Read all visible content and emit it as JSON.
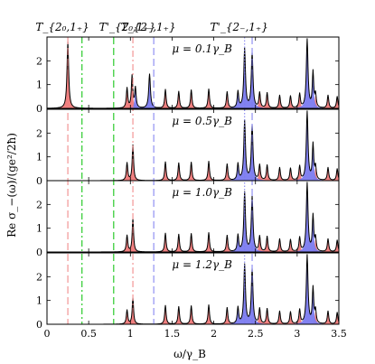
{
  "chart_data": {
    "type": "area",
    "ylabel": "Re σ_−(ω)/(ge²/2ħ)",
    "xlabel": "ω/γ_B",
    "xlim": [
      0,
      3.5
    ],
    "ylim": [
      0,
      3
    ],
    "x_ticks": [
      "0",
      "0.5",
      "1",
      "1.5",
      "2",
      "2.5",
      "3",
      "3.5"
    ],
    "y_ticks": [
      "0",
      "1",
      "2"
    ],
    "top_labels": [
      "T_{2₀,1₊}",
      "T'_{2₀,1₊}",
      "T_{2₋,1₊}",
      "T'_{2₋,1₊}"
    ],
    "colors": {
      "red": "#f08080",
      "blue": "#7b7bef",
      "curve": "#000000",
      "green": "#00c000"
    },
    "panels": [
      {
        "mu_label": "μ = 0.1γ_B",
        "red_peaks": [
          [
            0.25,
            2.8,
            0.012
          ],
          [
            0.96,
            0.85,
            0.01
          ],
          [
            1.02,
            1.35,
            0.01
          ],
          [
            1.42,
            0.8,
            0.01
          ],
          [
            1.58,
            0.72,
            0.01
          ],
          [
            1.73,
            0.78,
            0.01
          ],
          [
            1.94,
            0.82,
            0.01
          ],
          [
            2.16,
            0.7,
            0.01
          ],
          [
            2.55,
            0.65,
            0.01
          ],
          [
            2.64,
            0.65,
            0.01
          ],
          [
            2.79,
            0.55,
            0.01
          ],
          [
            2.92,
            0.52,
            0.01
          ],
          [
            3.03,
            0.6,
            0.01
          ],
          [
            3.22,
            0.55,
            0.01
          ],
          [
            3.37,
            0.55,
            0.01
          ],
          [
            3.48,
            0.5,
            0.01
          ]
        ],
        "blue_peaks": [
          [
            1.06,
            0.85,
            0.01
          ],
          [
            1.23,
            1.45,
            0.012
          ],
          [
            2.29,
            0.7,
            0.01
          ],
          [
            2.37,
            2.5,
            0.012
          ],
          [
            2.46,
            2.3,
            0.012
          ],
          [
            3.12,
            2.9,
            0.012
          ],
          [
            3.19,
            1.5,
            0.01
          ]
        ]
      },
      {
        "mu_label": "μ = 0.5γ_B",
        "red_peaks": [
          [
            0.96,
            0.75,
            0.01
          ],
          [
            1.03,
            1.5,
            0.01
          ],
          [
            1.42,
            0.8,
            0.01
          ],
          [
            1.58,
            0.75,
            0.01
          ],
          [
            1.73,
            0.78,
            0.01
          ],
          [
            1.94,
            0.82,
            0.01
          ],
          [
            2.16,
            0.7,
            0.01
          ],
          [
            2.55,
            0.65,
            0.01
          ],
          [
            2.64,
            0.65,
            0.01
          ],
          [
            2.79,
            0.55,
            0.01
          ],
          [
            2.92,
            0.52,
            0.01
          ],
          [
            3.03,
            0.6,
            0.01
          ],
          [
            3.22,
            0.55,
            0.01
          ],
          [
            3.37,
            0.55,
            0.01
          ],
          [
            3.48,
            0.5,
            0.01
          ]
        ],
        "blue_peaks": [
          [
            2.29,
            0.7,
            0.01
          ],
          [
            2.37,
            2.5,
            0.012
          ],
          [
            2.46,
            2.3,
            0.012
          ],
          [
            3.12,
            2.9,
            0.012
          ],
          [
            3.19,
            1.5,
            0.01
          ]
        ]
      },
      {
        "mu_label": "μ = 1.0γ_B",
        "red_peaks": [
          [
            0.96,
            0.7,
            0.01
          ],
          [
            1.03,
            1.4,
            0.01
          ],
          [
            1.42,
            0.8,
            0.01
          ],
          [
            1.58,
            0.75,
            0.01
          ],
          [
            1.73,
            0.78,
            0.01
          ],
          [
            1.94,
            0.82,
            0.01
          ],
          [
            2.16,
            0.7,
            0.01
          ],
          [
            2.55,
            0.65,
            0.01
          ],
          [
            2.64,
            0.65,
            0.01
          ],
          [
            2.79,
            0.55,
            0.01
          ],
          [
            2.92,
            0.52,
            0.01
          ],
          [
            3.03,
            0.6,
            0.01
          ],
          [
            3.22,
            0.55,
            0.01
          ],
          [
            3.37,
            0.55,
            0.01
          ],
          [
            3.48,
            0.5,
            0.01
          ]
        ],
        "blue_peaks": [
          [
            2.29,
            0.7,
            0.01
          ],
          [
            2.37,
            2.5,
            0.012
          ],
          [
            2.46,
            2.3,
            0.012
          ],
          [
            3.12,
            2.9,
            0.012
          ],
          [
            3.19,
            1.5,
            0.01
          ]
        ]
      },
      {
        "mu_label": "μ = 1.2γ_B",
        "red_peaks": [
          [
            0.96,
            0.6,
            0.01
          ],
          [
            1.03,
            1.1,
            0.01
          ],
          [
            1.42,
            0.8,
            0.01
          ],
          [
            1.58,
            0.75,
            0.01
          ],
          [
            1.73,
            0.78,
            0.01
          ],
          [
            1.94,
            0.82,
            0.01
          ],
          [
            2.16,
            0.7,
            0.01
          ],
          [
            2.55,
            0.65,
            0.01
          ],
          [
            2.64,
            0.65,
            0.01
          ],
          [
            2.79,
            0.55,
            0.01
          ],
          [
            2.92,
            0.52,
            0.01
          ],
          [
            3.03,
            0.6,
            0.01
          ],
          [
            3.22,
            0.55,
            0.01
          ],
          [
            3.37,
            0.55,
            0.01
          ],
          [
            3.48,
            0.5,
            0.01
          ]
        ],
        "blue_peaks": [
          [
            2.29,
            0.7,
            0.01
          ],
          [
            2.37,
            2.5,
            0.012
          ],
          [
            2.46,
            2.3,
            0.012
          ],
          [
            3.12,
            2.9,
            0.012
          ],
          [
            3.19,
            1.5,
            0.01
          ]
        ]
      }
    ],
    "vertical_lines": [
      {
        "x": 0.25,
        "color": "red",
        "style": "dashed"
      },
      {
        "x": 0.42,
        "color": "green",
        "style": "dashdot"
      },
      {
        "x": 0.8,
        "color": "green",
        "style": "dashed"
      },
      {
        "x": 1.03,
        "color": "red",
        "style": "dashdot"
      },
      {
        "x": 1.28,
        "color": "blue",
        "style": "dashed"
      },
      {
        "x": 2.37,
        "color": "blue",
        "style": "dotted"
      },
      {
        "x": 2.46,
        "color": "blue",
        "style": "dashed"
      }
    ]
  }
}
